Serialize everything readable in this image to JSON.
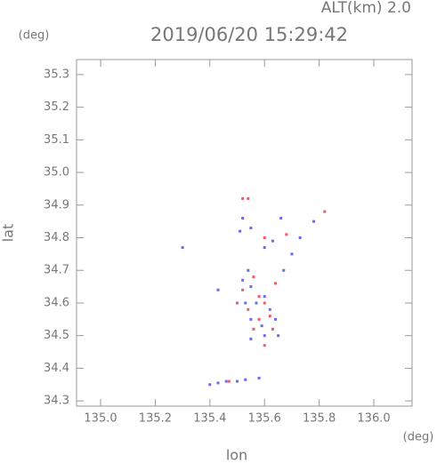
{
  "altitude_label": "ALT(km) 2.0",
  "chart_data": {
    "type": "scatter",
    "title": "2019/06/20 15:29:42",
    "x_label": "lon",
    "y_label": "lat",
    "x_unit": "(deg)",
    "y_unit": "(deg)",
    "xlim": [
      134.912,
      136.14
    ],
    "ylim": [
      34.284,
      35.346
    ],
    "xticks": [
      {
        "value": 135.0,
        "label": "135.0"
      },
      135.2,
      135.4,
      135.6,
      135.8,
      {
        "value": 136.0,
        "label": "136.0"
      }
    ],
    "yticks": [
      34.3,
      34.4,
      34.5,
      34.6,
      34.7,
      34.8,
      34.9,
      {
        "value": 35.0,
        "label": "35.0"
      },
      35.1,
      35.2,
      35.3
    ],
    "series": [
      {
        "color": "#f05a6e",
        "x": [
          135.54,
          135.52,
          135.68,
          135.82,
          135.6,
          135.56,
          135.58,
          135.6,
          135.54,
          135.62,
          135.6,
          135.56,
          135.52,
          135.64,
          135.58,
          135.63,
          135.5,
          135.47
        ],
        "values": [
          34.92,
          34.92,
          34.81,
          34.88,
          34.8,
          34.68,
          34.62,
          34.6,
          34.58,
          34.56,
          34.47,
          34.52,
          34.64,
          34.66,
          34.55,
          34.52,
          34.6,
          34.36
        ]
      },
      {
        "color": "#6a6af0",
        "x": [
          135.52,
          135.51,
          135.55,
          135.6,
          135.63,
          135.66,
          135.73,
          135.78,
          135.3,
          135.54,
          135.52,
          135.55,
          135.6,
          135.57,
          135.53,
          135.62,
          135.55,
          135.59,
          135.6,
          135.55,
          135.65,
          135.43,
          135.4,
          135.43,
          135.46,
          135.5,
          135.53,
          135.58,
          135.7,
          135.67,
          135.64
        ],
        "values": [
          34.86,
          34.82,
          34.83,
          34.77,
          34.79,
          34.86,
          34.8,
          34.85,
          34.77,
          34.7,
          34.67,
          34.65,
          34.62,
          34.6,
          34.6,
          34.58,
          34.55,
          34.53,
          34.5,
          34.49,
          34.5,
          34.64,
          34.35,
          34.355,
          34.36,
          34.36,
          34.365,
          34.37,
          34.75,
          34.7,
          34.55
        ]
      }
    ]
  }
}
